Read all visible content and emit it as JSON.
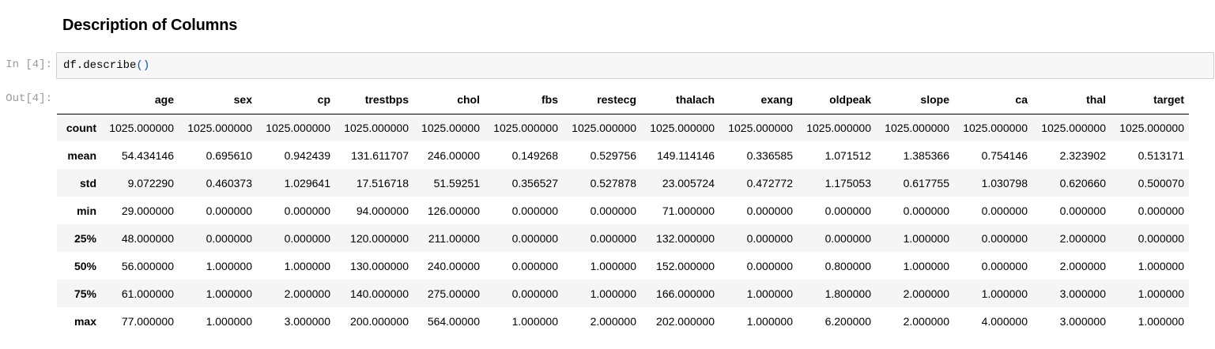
{
  "markdown": {
    "heading": "Description of Columns"
  },
  "input_cell": {
    "prompt": "In [4]:",
    "code_object": "df.describe",
    "code_parens": "()"
  },
  "output_cell": {
    "prompt": "Out[4]:",
    "table": {
      "columns": [
        "age",
        "sex",
        "cp",
        "trestbps",
        "chol",
        "fbs",
        "restecg",
        "thalach",
        "exang",
        "oldpeak",
        "slope",
        "ca",
        "thal",
        "target"
      ],
      "rows": [
        {
          "index": "count",
          "values": [
            "1025.000000",
            "1025.000000",
            "1025.000000",
            "1025.000000",
            "1025.00000",
            "1025.000000",
            "1025.000000",
            "1025.000000",
            "1025.000000",
            "1025.000000",
            "1025.000000",
            "1025.000000",
            "1025.000000",
            "1025.000000"
          ]
        },
        {
          "index": "mean",
          "values": [
            "54.434146",
            "0.695610",
            "0.942439",
            "131.611707",
            "246.00000",
            "0.149268",
            "0.529756",
            "149.114146",
            "0.336585",
            "1.071512",
            "1.385366",
            "0.754146",
            "2.323902",
            "0.513171"
          ]
        },
        {
          "index": "std",
          "values": [
            "9.072290",
            "0.460373",
            "1.029641",
            "17.516718",
            "51.59251",
            "0.356527",
            "0.527878",
            "23.005724",
            "0.472772",
            "1.175053",
            "0.617755",
            "1.030798",
            "0.620660",
            "0.500070"
          ]
        },
        {
          "index": "min",
          "values": [
            "29.000000",
            "0.000000",
            "0.000000",
            "94.000000",
            "126.00000",
            "0.000000",
            "0.000000",
            "71.000000",
            "0.000000",
            "0.000000",
            "0.000000",
            "0.000000",
            "0.000000",
            "0.000000"
          ]
        },
        {
          "index": "25%",
          "values": [
            "48.000000",
            "0.000000",
            "0.000000",
            "120.000000",
            "211.00000",
            "0.000000",
            "0.000000",
            "132.000000",
            "0.000000",
            "0.000000",
            "1.000000",
            "0.000000",
            "2.000000",
            "0.000000"
          ]
        },
        {
          "index": "50%",
          "values": [
            "56.000000",
            "1.000000",
            "1.000000",
            "130.000000",
            "240.00000",
            "0.000000",
            "1.000000",
            "152.000000",
            "0.000000",
            "0.800000",
            "1.000000",
            "0.000000",
            "2.000000",
            "1.000000"
          ]
        },
        {
          "index": "75%",
          "values": [
            "61.000000",
            "1.000000",
            "2.000000",
            "140.000000",
            "275.00000",
            "0.000000",
            "1.000000",
            "166.000000",
            "1.000000",
            "1.800000",
            "2.000000",
            "1.000000",
            "3.000000",
            "1.000000"
          ]
        },
        {
          "index": "max",
          "values": [
            "77.000000",
            "1.000000",
            "3.000000",
            "200.000000",
            "564.00000",
            "1.000000",
            "2.000000",
            "202.000000",
            "1.000000",
            "6.200000",
            "2.000000",
            "4.000000",
            "3.000000",
            "1.000000"
          ]
        }
      ]
    }
  },
  "colors": {
    "input_background": "#f7f7f7",
    "input_border": "#cfcfcf",
    "prompt_text": "#999999",
    "paren_color": "#0055aa",
    "row_stripe": "#f5f5f5"
  }
}
